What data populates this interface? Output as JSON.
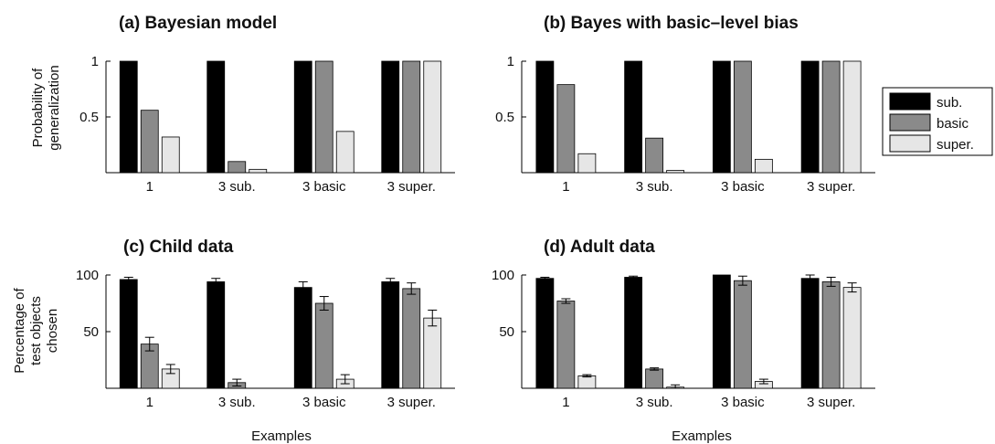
{
  "legend": {
    "placement": "right",
    "items": [
      {
        "label": "sub.",
        "color": "#000000"
      },
      {
        "label": "basic",
        "color": "#8a8a8a"
      },
      {
        "label": "super.",
        "color": "#e6e6e6"
      }
    ]
  },
  "chart_data": [
    {
      "type": "bar",
      "title": "(a) Bayesian model",
      "xlabel": "",
      "ylabel": [
        "Probability of",
        "generalization"
      ],
      "categories": [
        "1",
        "3 sub.",
        "3 basic",
        "3 super."
      ],
      "yticks": [
        0.5,
        1
      ],
      "ytick_labels": [
        "0.5",
        "1"
      ],
      "ylim": [
        0,
        1
      ],
      "grid": false,
      "series": [
        {
          "name": "sub.",
          "values": [
            1.0,
            1.0,
            1.0,
            1.0
          ]
        },
        {
          "name": "basic",
          "values": [
            0.56,
            0.1,
            1.0,
            1.0
          ]
        },
        {
          "name": "super.",
          "values": [
            0.32,
            0.03,
            0.37,
            1.0
          ]
        }
      ]
    },
    {
      "type": "bar",
      "title": "(b) Bayes with basic–level bias",
      "xlabel": "",
      "ylabel": [],
      "categories": [
        "1",
        "3 sub.",
        "3 basic",
        "3 super."
      ],
      "yticks": [
        0.5,
        1
      ],
      "ytick_labels": [
        "0.5",
        "1"
      ],
      "ylim": [
        0,
        1
      ],
      "grid": false,
      "series": [
        {
          "name": "sub.",
          "values": [
            1.0,
            1.0,
            1.0,
            1.0
          ]
        },
        {
          "name": "basic",
          "values": [
            0.79,
            0.31,
            1.0,
            1.0
          ]
        },
        {
          "name": "super.",
          "values": [
            0.17,
            0.02,
            0.12,
            1.0
          ]
        }
      ]
    },
    {
      "type": "bar",
      "title": "(c) Child data",
      "xlabel": "Examples",
      "ylabel": [
        "Percentage of",
        "test objects",
        "chosen"
      ],
      "categories": [
        "1",
        "3 sub.",
        "3 basic",
        "3 super."
      ],
      "yticks": [
        50,
        100
      ],
      "ytick_labels": [
        "50",
        "100"
      ],
      "ylim": [
        0,
        100
      ],
      "grid": false,
      "series": [
        {
          "name": "sub.",
          "values": [
            96,
            94,
            89,
            94
          ],
          "errors": [
            2,
            3,
            5,
            3
          ]
        },
        {
          "name": "basic",
          "values": [
            39,
            5,
            75,
            88
          ],
          "errors": [
            6,
            3,
            6,
            5
          ]
        },
        {
          "name": "super.",
          "values": [
            17,
            0,
            8,
            62
          ],
          "errors": [
            4,
            0,
            4,
            7
          ]
        }
      ]
    },
    {
      "type": "bar",
      "title": "(d) Adult data",
      "xlabel": "Examples",
      "ylabel": [],
      "categories": [
        "1",
        "3 sub.",
        "3 basic",
        "3 super."
      ],
      "yticks": [
        50,
        100
      ],
      "ytick_labels": [
        "50",
        "100"
      ],
      "ylim": [
        0,
        100
      ],
      "grid": false,
      "series": [
        {
          "name": "sub.",
          "values": [
            97,
            98,
            100,
            97
          ],
          "errors": [
            1,
            1,
            0,
            3
          ]
        },
        {
          "name": "basic",
          "values": [
            77,
            17,
            95,
            94
          ],
          "errors": [
            2,
            1,
            4,
            4
          ]
        },
        {
          "name": "super.",
          "values": [
            11,
            1,
            6,
            89
          ],
          "errors": [
            1,
            2,
            2,
            4
          ]
        }
      ]
    }
  ]
}
